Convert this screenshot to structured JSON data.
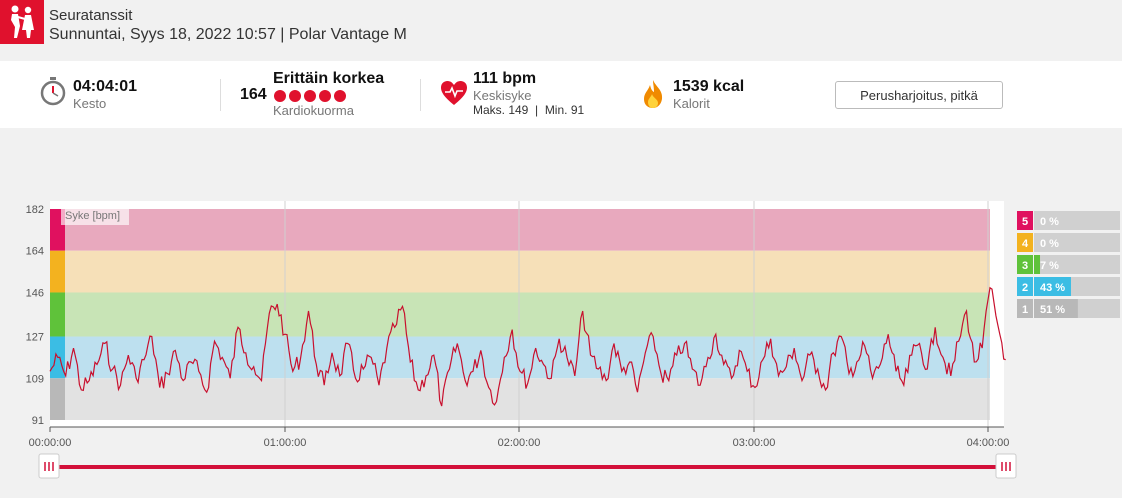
{
  "header": {
    "title": "Seuratanssit",
    "subtitle": "Sunnuntai, Syys 18, 2022 10:57 | Polar Vantage M",
    "logo_icon": "dancing-couple-icon"
  },
  "stats": {
    "duration": {
      "value": "04:04:01",
      "label": "Kesto",
      "icon": "stopwatch-icon"
    },
    "cardio_load": {
      "number": "164",
      "value": "Erittäin korkea",
      "label": "Kardiokuormа",
      "dots": 5,
      "icon": "cardio-dots"
    },
    "heart_rate": {
      "value": "111 bpm",
      "label": "Keskisyke",
      "minmax": "Maks. 149  |  Min. 91",
      "icon": "heart-icon"
    },
    "calories": {
      "value": "1539 kcal",
      "label": "Kalorit",
      "icon": "flame-icon"
    },
    "sport_button": "Perusharjoitus, pitkä"
  },
  "colors": {
    "accent": "#d3103a",
    "zone5": "#e8a9be",
    "zone4": "#f6e0b8",
    "zone3": "#c8e4b6",
    "zone2": "#bde0ef",
    "zone1": "#e2e2e2"
  },
  "chart_data": {
    "type": "line",
    "series_label": "Syke [bpm]",
    "y_ticks": [
      182,
      164,
      146,
      127,
      109,
      91
    ],
    "ylim": [
      91,
      182
    ],
    "x_ticks": [
      "00:00:00",
      "01:00:00",
      "02:00:00",
      "03:00:00",
      "04:00:00"
    ],
    "xlim_minutes": [
      0,
      244
    ],
    "zones": [
      {
        "zone": "5",
        "from": 164,
        "to": 182,
        "share": "0 %",
        "pct": 0
      },
      {
        "zone": "4",
        "from": 146,
        "to": 164,
        "share": "0 %",
        "pct": 0
      },
      {
        "zone": "3",
        "from": 127,
        "to": 146,
        "share": "7 %",
        "pct": 7
      },
      {
        "zone": "2",
        "from": 109,
        "to": 127,
        "share": "43 %",
        "pct": 43
      },
      {
        "zone": "1",
        "from": 91,
        "to": 109,
        "share": "51 %",
        "pct": 51
      }
    ],
    "series": [
      {
        "x": [
          0,
          2,
          4,
          6,
          8,
          10,
          12,
          14,
          16,
          18,
          20,
          22,
          24,
          26,
          28,
          30,
          32,
          34,
          36,
          38,
          40,
          42,
          44,
          46,
          48,
          50,
          52,
          54,
          56,
          58,
          60,
          62,
          64,
          66,
          68,
          70,
          72,
          74,
          76,
          78,
          80,
          82,
          84,
          86,
          88,
          90,
          92,
          94,
          96,
          98,
          100,
          102,
          104,
          106,
          108,
          110,
          112,
          114,
          116,
          118,
          120,
          122,
          124,
          126,
          128,
          130,
          132,
          134,
          136,
          138,
          140,
          142,
          144,
          146,
          148,
          150,
          152,
          154,
          156,
          158,
          160,
          162,
          164,
          166,
          168,
          170,
          172,
          174,
          176,
          178,
          180,
          182,
          184,
          186,
          188,
          190,
          192,
          194,
          196,
          198,
          200,
          202,
          204,
          206,
          208,
          210,
          212,
          214,
          216,
          218,
          220,
          222,
          224,
          226,
          228,
          230,
          232,
          234,
          236,
          238,
          240,
          242,
          244
        ],
        "y": [
          112,
          118,
          110,
          122,
          104,
          108,
          115,
          124,
          113,
          106,
          119,
          109,
          117,
          127,
          105,
          111,
          121,
          108,
          116,
          112,
          103,
          125,
          118,
          109,
          131,
          120,
          114,
          108,
          137,
          141,
          128,
          112,
          118,
          138,
          115,
          106,
          120,
          110,
          124,
          109,
          113,
          118,
          106,
          122,
          131,
          140,
          116,
          104,
          110,
          119,
          97,
          113,
          124,
          108,
          112,
          121,
          105,
          99,
          118,
          130,
          112,
          107,
          122,
          115,
          109,
          126,
          118,
          110,
          138,
          119,
          113,
          108,
          124,
          112,
          116,
          103,
          120,
          127,
          111,
          108,
          119,
          124,
          113,
          106,
          118,
          128,
          115,
          109,
          121,
          112,
          105,
          117,
          126,
          110,
          114,
          122,
          108,
          119,
          113,
          104,
          120,
          127,
          111,
          116,
          123,
          109,
          115,
          128,
          112,
          106,
          119,
          124,
          113,
          131,
          118,
          110,
          125,
          138,
          116,
          122,
          148,
          132,
          117
        ]
      }
    ]
  }
}
